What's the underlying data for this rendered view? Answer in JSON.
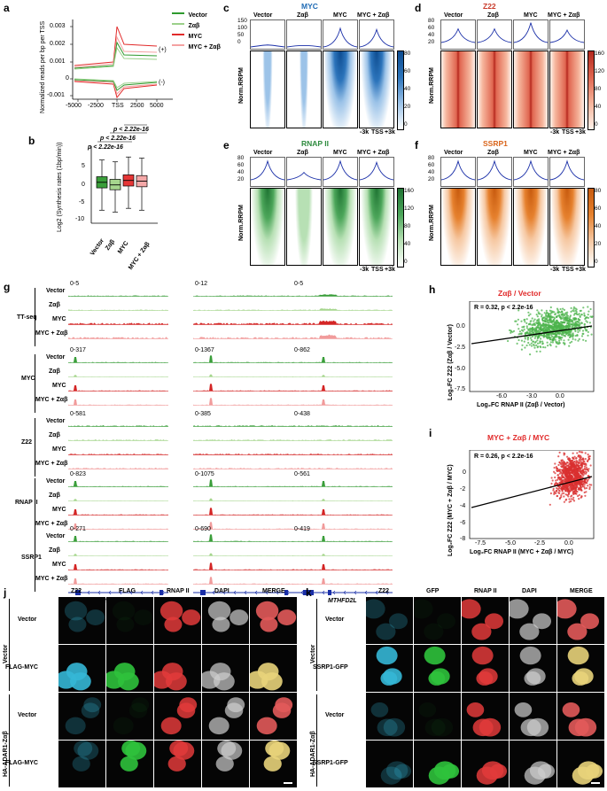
{
  "panels": {
    "a": "a",
    "b": "b",
    "c": "c",
    "d": "d",
    "e": "e",
    "f": "f",
    "g": "g",
    "h": "h",
    "i": "i",
    "j": "j",
    "k": "k"
  },
  "panel_a": {
    "ylabel": "Normalized reads per bp per TSS",
    "yticks": [
      "0.003",
      "0.002",
      "0.001",
      "0",
      "-0.001"
    ],
    "xticks": [
      "-5000",
      "-2500",
      "TSS",
      "2500",
      "5000"
    ],
    "legend": [
      "Vector",
      "Zαβ",
      "MYC",
      "MYC + Zαβ"
    ],
    "colors": [
      "#2e9a2e",
      "#9bd08a",
      "#e12a2a",
      "#f4a2a2"
    ],
    "plus": "(+)",
    "minus": "(-)"
  },
  "panel_b": {
    "ylabel": "Log2 (Synthesis rates (1bp/min))",
    "yticks": [
      "5",
      "0",
      "-5",
      "-10"
    ],
    "groups": [
      "Vector",
      "Zαβ",
      "MYC",
      "MYC + Zαβ"
    ],
    "pvals": [
      "p < 2.22e-16",
      "p < 2.22e-16",
      "p < 2.22e-16"
    ],
    "boxes": [
      {
        "q1": -0.5,
        "median": 1.0,
        "q3": 2.5,
        "lo": -6.5,
        "hi": 7.0
      },
      {
        "q1": -1.0,
        "median": 0.3,
        "q3": 1.8,
        "lo": -7.0,
        "hi": 6.5
      },
      {
        "q1": 0.0,
        "median": 1.5,
        "q3": 3.0,
        "lo": -6.0,
        "hi": 7.8
      },
      {
        "q1": -0.2,
        "median": 1.3,
        "q3": 2.8,
        "lo": -6.5,
        "hi": 7.5
      }
    ]
  },
  "heatmaps": {
    "columns": [
      "Vector",
      "Zαβ",
      "MYC",
      "MYC + Zαβ"
    ],
    "ylabel": "Norm.RRPM",
    "xticks": [
      "-3k",
      "TSS",
      "+3k"
    ],
    "c": {
      "title": "MYC",
      "profile_ticks": [
        "150",
        "100",
        "50",
        "0"
      ],
      "scale": [
        "80",
        "60",
        "40",
        "20",
        "0"
      ],
      "color": "#1f6bb5"
    },
    "d": {
      "title": "Z22",
      "profile_ticks": [
        "80",
        "60",
        "40",
        "20"
      ],
      "scale": [
        "160",
        "120",
        "80",
        "40",
        "0"
      ],
      "color": "#c93a2a"
    },
    "e": {
      "title": "RNAP II",
      "profile_ticks": [
        "80",
        "60",
        "40",
        "20"
      ],
      "scale": [
        "160",
        "120",
        "80",
        "40",
        "0"
      ],
      "color": "#2e8b3e"
    },
    "f": {
      "title": "SSRP1",
      "profile_ticks": [
        "80",
        "60",
        "40",
        "20"
      ],
      "scale": [
        "80",
        "60",
        "40",
        "20",
        "0"
      ],
      "color": "#d9641a"
    }
  },
  "panel_g": {
    "groups": [
      {
        "name": "TT-seq",
        "ranges": [
          "0-5",
          "0-12",
          "0-5"
        ]
      },
      {
        "name": "MYC",
        "ranges": [
          "0-317",
          "0-1367",
          "0-862"
        ]
      },
      {
        "name": "Z22",
        "ranges": [
          "0-581",
          "0-385",
          "0-438"
        ]
      },
      {
        "name": "RNAP II",
        "ranges": [
          "0-823",
          "0-1075",
          "0-561"
        ]
      },
      {
        "name": "SSRP1",
        "ranges": [
          "0-271",
          "0-690",
          "0-419"
        ]
      }
    ],
    "conditions": [
      "Vector",
      "Zαβ",
      "MYC",
      "MYC + Zαβ"
    ],
    "genes": [
      "PHACTR4",
      "E2F3",
      "MTHFD2L"
    ]
  },
  "panel_h": {
    "title": "Zαβ / Vector",
    "stat": "R = 0.32, p < 2.2e-16",
    "xlabel": "Log₂FC RNAP II (Zαβ / Vector)",
    "ylabel": "Log₂FC Z22 (Zαβ / Vector)",
    "xticks": [
      "-6.0",
      "-3.0",
      "0.0"
    ],
    "yticks": [
      "0.0",
      "-2.5",
      "-5.0",
      "-7.5"
    ]
  },
  "panel_i": {
    "title": "MYC + Zαβ / MYC",
    "stat": "R = 0.26, p < 2.2e-16",
    "xlabel": "Log₂FC RNAP II (MYC + Zαβ / MYC)",
    "ylabel": "Log₂FC Z22 (MYC + Zαβ / MYC)",
    "xticks": [
      "-7.5",
      "-5.0",
      "-2.5",
      "0.0"
    ],
    "yticks": [
      "0",
      "-2",
      "-4",
      "-6",
      "-8"
    ]
  },
  "panel_j": {
    "columns": [
      "Z22",
      "FLAG",
      "RNAP II",
      "DAPI",
      "MERGE"
    ],
    "row_labels": [
      "Vector",
      "FLAG-MYC",
      "Vector",
      "FLAG-MYC"
    ],
    "group_labels": [
      "Vector",
      "HA-ADAR1-Zαβ"
    ]
  },
  "panel_k": {
    "columns": [
      "Z22",
      "GFP",
      "RNAP II",
      "DAPI",
      "MERGE"
    ],
    "row_labels": [
      "Vector",
      "SSRP1-GFP",
      "Vector",
      "SSRP1-GFP"
    ],
    "group_labels": [
      "Vector",
      "HA-ADAR1-Zαβ"
    ]
  }
}
